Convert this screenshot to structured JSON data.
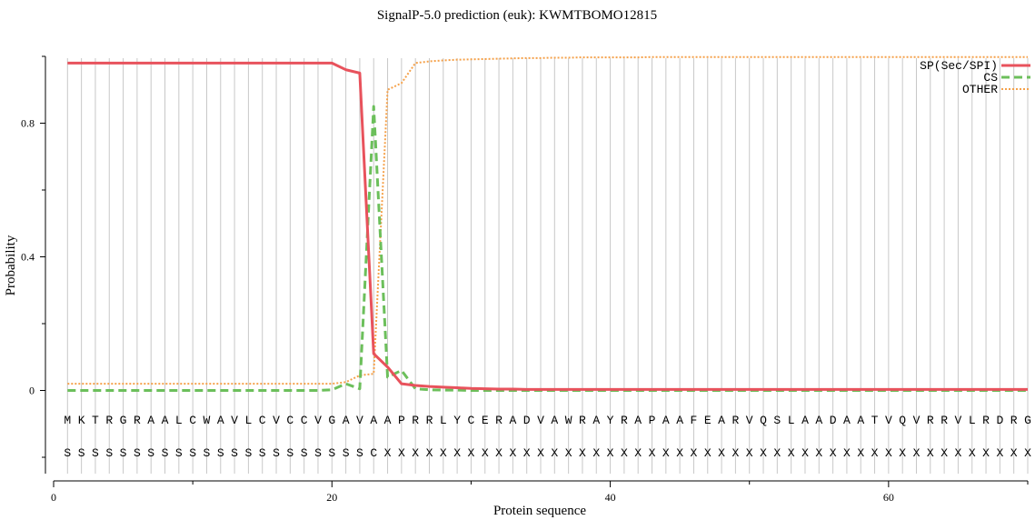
{
  "chart_data": {
    "type": "line",
    "title": "SignalP-5.0 prediction (euk):  KWMTBOMO12815",
    "xlabel": "Protein sequence",
    "ylabel": "Probability",
    "xlim": [
      0,
      70
    ],
    "ylim": [
      -0.25,
      1.01
    ],
    "x_ticks": [
      0,
      20,
      40,
      60
    ],
    "y_ticks": [
      0,
      0.4,
      0.8
    ],
    "y_tick_labels": [
      "0",
      "0.4",
      "0.8"
    ],
    "grid": "vertical lines at each residue",
    "legend_position": "top-right",
    "sequence": "MKTRGRAALCWAVLCVCCVGAVAAPRRLYCERADVAWRAYRAPAAFEARVQSLAADAATVQVRRVLRDRG",
    "annotation": "SSSSSSSSSSSSSSSSSSSSSSCXXXXXXXXXXXXXXXXXXXXXXXXXXXXXXXXXXXXXXXXXXXXXXXX",
    "x": [
      1,
      2,
      3,
      4,
      5,
      6,
      7,
      8,
      9,
      10,
      11,
      12,
      13,
      14,
      15,
      16,
      17,
      18,
      19,
      20,
      21,
      22,
      23,
      24,
      25,
      26,
      27,
      28,
      29,
      30,
      31,
      32,
      33,
      34,
      35,
      36,
      37,
      38,
      39,
      40,
      41,
      42,
      43,
      44,
      45,
      46,
      47,
      48,
      49,
      50,
      51,
      52,
      53,
      54,
      55,
      56,
      57,
      58,
      59,
      60,
      61,
      62,
      63,
      64,
      65,
      66,
      67,
      68,
      69,
      70
    ],
    "series": [
      {
        "name": "SP(Sec/SPI)",
        "color": "#e8525c",
        "style": "solid",
        "values": [
          0.98,
          0.98,
          0.98,
          0.98,
          0.98,
          0.98,
          0.98,
          0.98,
          0.98,
          0.98,
          0.98,
          0.98,
          0.98,
          0.98,
          0.98,
          0.98,
          0.98,
          0.98,
          0.98,
          0.98,
          0.96,
          0.95,
          0.11,
          0.07,
          0.02,
          0.015,
          0.012,
          0.01,
          0.008,
          0.006,
          0.005,
          0.004,
          0.004,
          0.003,
          0.003,
          0.003,
          0.003,
          0.003,
          0.003,
          0.003,
          0.003,
          0.003,
          0.003,
          0.003,
          0.003,
          0.003,
          0.003,
          0.003,
          0.003,
          0.003,
          0.003,
          0.003,
          0.003,
          0.003,
          0.003,
          0.003,
          0.003,
          0.003,
          0.003,
          0.003,
          0.003,
          0.003,
          0.003,
          0.003,
          0.003,
          0.003,
          0.003,
          0.003,
          0.003,
          0.003
        ]
      },
      {
        "name": "CS",
        "color": "#6cbf5b",
        "style": "dashed",
        "values": [
          0,
          0,
          0,
          0,
          0,
          0,
          0,
          0,
          0,
          0,
          0,
          0,
          0,
          0,
          0,
          0,
          0,
          0,
          0,
          0.002,
          0.02,
          0.005,
          0.85,
          0.04,
          0.06,
          0.005,
          0.002,
          0.001,
          0.001,
          0,
          0,
          0,
          0,
          0,
          0,
          0,
          0,
          0,
          0,
          0,
          0,
          0,
          0,
          0,
          0,
          0,
          0,
          0,
          0,
          0,
          0,
          0,
          0,
          0,
          0,
          0,
          0,
          0,
          0,
          0,
          0,
          0,
          0,
          0,
          0,
          0,
          0,
          0,
          0,
          0
        ]
      },
      {
        "name": "OTHER",
        "color": "#f5a14a",
        "style": "dotted",
        "values": [
          0.02,
          0.02,
          0.02,
          0.02,
          0.02,
          0.02,
          0.02,
          0.02,
          0.02,
          0.02,
          0.02,
          0.02,
          0.02,
          0.02,
          0.02,
          0.02,
          0.02,
          0.02,
          0.02,
          0.02,
          0.025,
          0.045,
          0.05,
          0.9,
          0.92,
          0.98,
          0.985,
          0.988,
          0.99,
          0.991,
          0.992,
          0.993,
          0.994,
          0.995,
          0.995,
          0.996,
          0.996,
          0.997,
          0.997,
          0.997,
          0.997,
          0.997,
          0.998,
          0.998,
          0.998,
          0.998,
          0.998,
          0.998,
          0.998,
          0.998,
          0.998,
          0.998,
          0.998,
          0.998,
          0.998,
          0.998,
          0.998,
          0.998,
          0.998,
          0.998,
          0.998,
          0.998,
          0.998,
          0.998,
          0.998,
          0.998,
          0.998,
          0.998,
          0.998,
          0.998
        ]
      }
    ]
  }
}
